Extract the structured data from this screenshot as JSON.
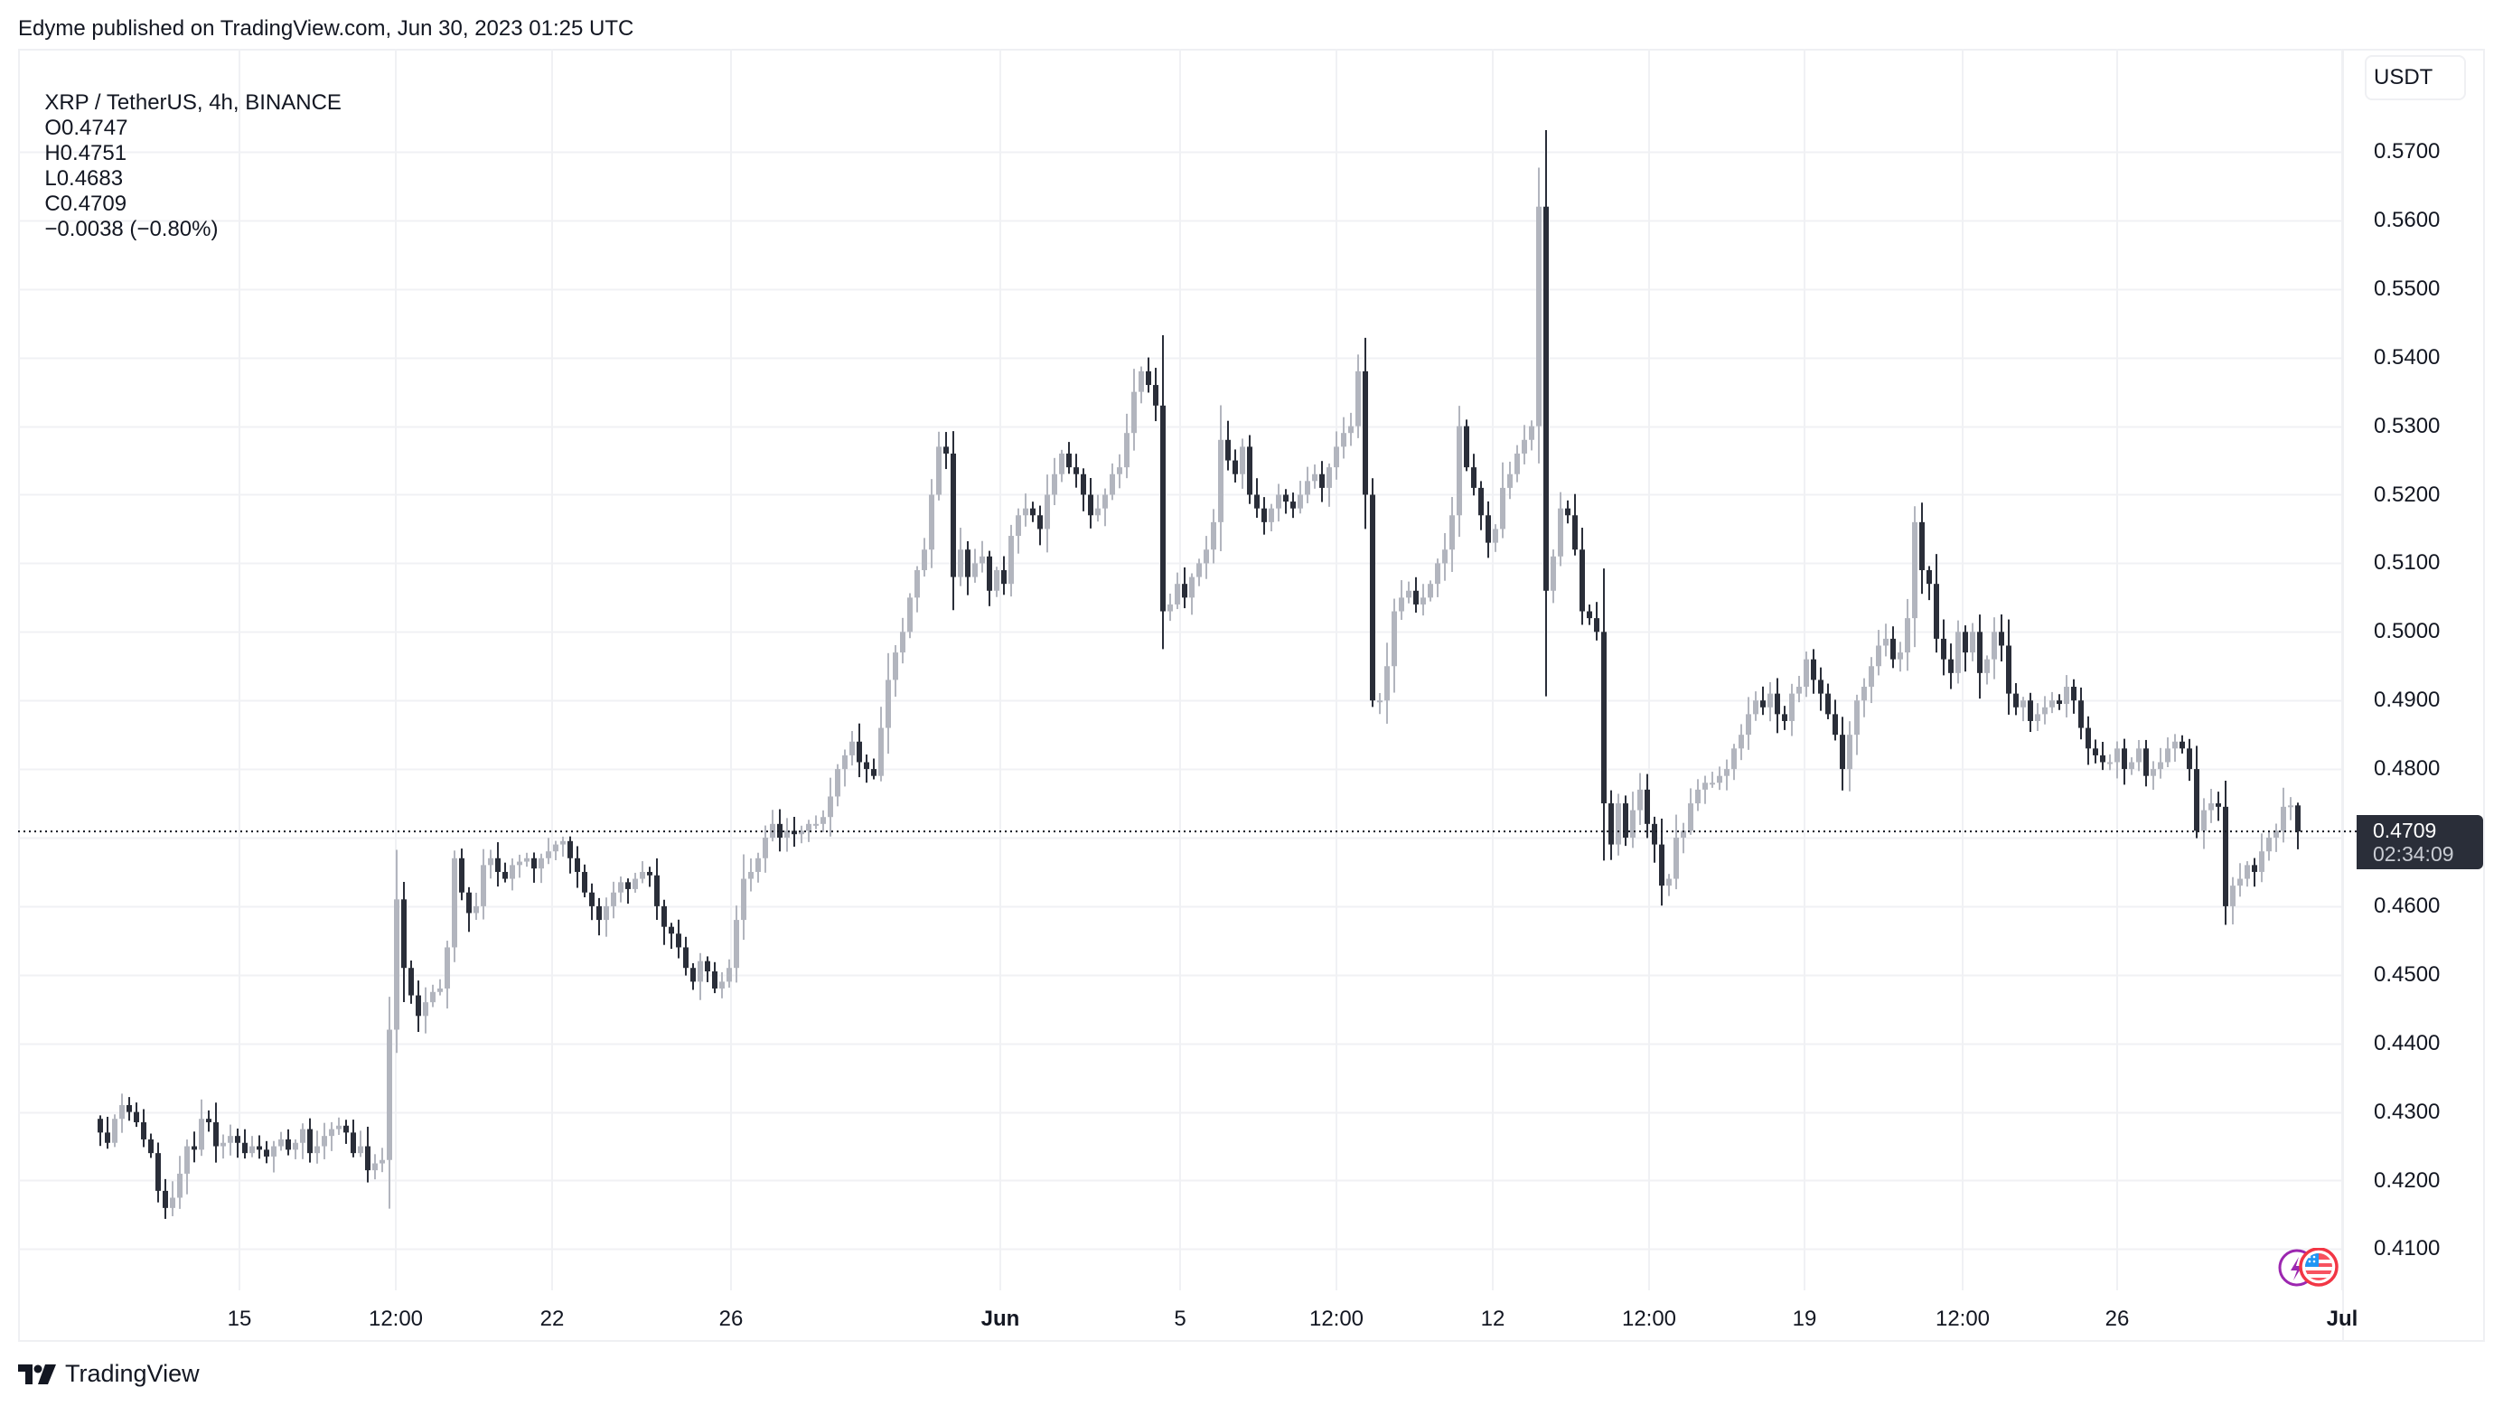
{
  "header": {
    "published": "Edyme published on TradingView.com, Jun 30, 2023 01:25 UTC"
  },
  "legend": {
    "symbol": "XRP / TetherUS, 4h, BINANCE",
    "open": "O0.4747",
    "high": "H0.4751",
    "low": "L0.4683",
    "close": "C0.4709",
    "change": "−0.0038 (−0.80%)"
  },
  "price_axis": {
    "currency": "USDT",
    "ticks": [
      "0.5700",
      "0.5600",
      "0.5500",
      "0.5400",
      "0.5300",
      "0.5200",
      "0.5100",
      "0.5000",
      "0.4900",
      "0.4800",
      "0.4600",
      "0.4500",
      "0.4400",
      "0.4300",
      "0.4200",
      "0.4100"
    ]
  },
  "current_price": {
    "value": "0.4709",
    "countdown": "02:34:09"
  },
  "time_axis": {
    "labels": [
      {
        "text": "15",
        "x": 265
      },
      {
        "text": "12:00",
        "x": 438
      },
      {
        "text": "22",
        "x": 611
      },
      {
        "text": "26",
        "x": 809
      },
      {
        "text": "Jun",
        "x": 1107,
        "bold": true
      },
      {
        "text": "5",
        "x": 1306
      },
      {
        "text": "12:00",
        "x": 1479
      },
      {
        "text": "12",
        "x": 1652
      },
      {
        "text": "12:00",
        "x": 1825
      },
      {
        "text": "19",
        "x": 1997
      },
      {
        "text": "12:00",
        "x": 2172
      },
      {
        "text": "26",
        "x": 2343
      },
      {
        "text": "Jul",
        "x": 2592,
        "bold": true
      }
    ]
  },
  "branding": {
    "name": "TradingView"
  },
  "colors": {
    "up": "#b2b5be",
    "down": "#2a2e39",
    "grid": "#f0f1f4",
    "price_tag": "#2a2e39"
  },
  "chart_data": {
    "type": "candlestick",
    "title": "XRP / TetherUS, 4h, BINANCE",
    "xlabel": "",
    "ylabel": "USDT",
    "ylim": [
      0.407,
      0.574
    ],
    "grid": true,
    "x_tick_labels": [
      "15",
      "12:00",
      "22",
      "26",
      "Jun",
      "5",
      "12:00",
      "12",
      "12:00",
      "19",
      "12:00",
      "26",
      "Jul"
    ],
    "y_tick_labels": [
      "0.4100",
      "0.4200",
      "0.4300",
      "0.4400",
      "0.4500",
      "0.4600",
      "0.4700",
      "0.4800",
      "0.4900",
      "0.5000",
      "0.5100",
      "0.5200",
      "0.5300",
      "0.5400",
      "0.5500",
      "0.5600",
      "0.5700"
    ],
    "last": {
      "open": 0.4747,
      "high": 0.4751,
      "low": 0.4683,
      "close": 0.4709,
      "change": -0.0038,
      "change_pct": -0.8
    },
    "closes": [
      0.427,
      0.4255,
      0.429,
      0.431,
      0.43,
      0.4285,
      0.426,
      0.424,
      0.4185,
      0.416,
      0.4175,
      0.421,
      0.425,
      0.4245,
      0.429,
      0.4285,
      0.425,
      0.4255,
      0.4265,
      0.4255,
      0.424,
      0.425,
      0.4245,
      0.4235,
      0.425,
      0.426,
      0.4245,
      0.4255,
      0.4275,
      0.424,
      0.425,
      0.4265,
      0.4275,
      0.428,
      0.427,
      0.424,
      0.425,
      0.4215,
      0.4225,
      0.423,
      0.442,
      0.461,
      0.451,
      0.447,
      0.444,
      0.446,
      0.4475,
      0.448,
      0.454,
      0.467,
      0.462,
      0.459,
      0.46,
      0.466,
      0.467,
      0.465,
      0.464,
      0.466,
      0.4665,
      0.467,
      0.4655,
      0.467,
      0.468,
      0.469,
      0.4695,
      0.467,
      0.465,
      0.462,
      0.46,
      0.458,
      0.46,
      0.462,
      0.4635,
      0.4625,
      0.464,
      0.465,
      0.4645,
      0.46,
      0.457,
      0.456,
      0.454,
      0.451,
      0.449,
      0.452,
      0.4505,
      0.448,
      0.449,
      0.451,
      0.458,
      0.464,
      0.465,
      0.467,
      0.47,
      0.472,
      0.47,
      0.471,
      0.4705,
      0.471,
      0.472,
      0.472,
      0.473,
      0.476,
      0.48,
      0.482,
      0.484,
      0.481,
      0.48,
      0.479,
      0.486,
      0.493,
      0.497,
      0.5,
      0.505,
      0.509,
      0.512,
      0.52,
      0.527,
      0.526,
      0.508,
      0.512,
      0.508,
      0.51,
      0.511,
      0.506,
      0.509,
      0.507,
      0.514,
      0.517,
      0.518,
      0.517,
      0.515,
      0.52,
      0.523,
      0.526,
      0.524,
      0.523,
      0.52,
      0.517,
      0.518,
      0.52,
      0.523,
      0.524,
      0.529,
      0.535,
      0.538,
      0.536,
      0.533,
      0.503,
      0.504,
      0.507,
      0.505,
      0.508,
      0.51,
      0.512,
      0.516,
      0.528,
      0.525,
      0.523,
      0.527,
      0.52,
      0.518,
      0.516,
      0.518,
      0.52,
      0.519,
      0.518,
      0.52,
      0.522,
      0.523,
      0.521,
      0.524,
      0.527,
      0.529,
      0.53,
      0.538,
      0.52,
      0.49,
      0.49,
      0.495,
      0.503,
      0.505,
      0.506,
      0.504,
      0.505,
      0.507,
      0.51,
      0.512,
      0.517,
      0.53,
      0.524,
      0.521,
      0.517,
      0.513,
      0.515,
      0.521,
      0.523,
      0.526,
      0.528,
      0.53,
      0.562,
      0.506,
      0.511,
      0.518,
      0.517,
      0.512,
      0.503,
      0.502,
      0.5,
      0.475,
      0.469,
      0.475,
      0.47,
      0.474,
      0.477,
      0.472,
      0.469,
      0.463,
      0.464,
      0.47,
      0.471,
      0.475,
      0.477,
      0.478,
      0.478,
      0.479,
      0.48,
      0.483,
      0.485,
      0.488,
      0.49,
      0.489,
      0.491,
      0.488,
      0.487,
      0.491,
      0.492,
      0.496,
      0.493,
      0.491,
      0.488,
      0.485,
      0.48,
      0.485,
      0.49,
      0.492,
      0.495,
      0.498,
      0.499,
      0.496,
      0.497,
      0.502,
      0.516,
      0.509,
      0.507,
      0.499,
      0.496,
      0.494,
      0.5,
      0.497,
      0.5,
      0.494,
      0.496,
      0.5,
      0.498,
      0.491,
      0.489,
      0.49,
      0.487,
      0.488,
      0.489,
      0.49,
      0.4895,
      0.492,
      0.49,
      0.486,
      0.483,
      0.482,
      0.481,
      0.481,
      0.483,
      0.48,
      0.481,
      0.483,
      0.479,
      0.48,
      0.481,
      0.483,
      0.484,
      0.483,
      0.48,
      0.471,
      0.474,
      0.475,
      0.4745,
      0.46,
      0.463,
      0.464,
      0.466,
      0.465,
      0.468,
      0.47,
      0.471,
      0.4745,
      0.4747,
      0.4709
    ]
  }
}
